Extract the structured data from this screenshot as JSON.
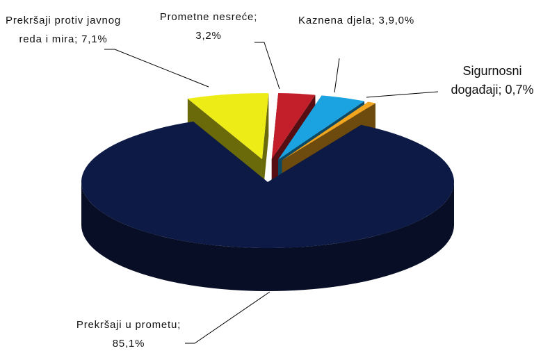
{
  "chart_data": {
    "type": "pie",
    "categories": [
      "Prometne nesreće;",
      "Kaznena djela;",
      "Sigurnosni događaji;",
      "Prekršaji u prometu;",
      "Prekršaji protiv javnog reda i mira;"
    ],
    "values": [
      3.2,
      3.9,
      0.7,
      85.1,
      7.1
    ],
    "value_labels": [
      "3,2%",
      "3,9,0%",
      "0,7%",
      "85,1%",
      "7,1%"
    ],
    "colors": [
      "#c21f2b",
      "#1aa3e0",
      "#f2a51f",
      "#0d1a45",
      "#eeec17"
    ]
  }
}
